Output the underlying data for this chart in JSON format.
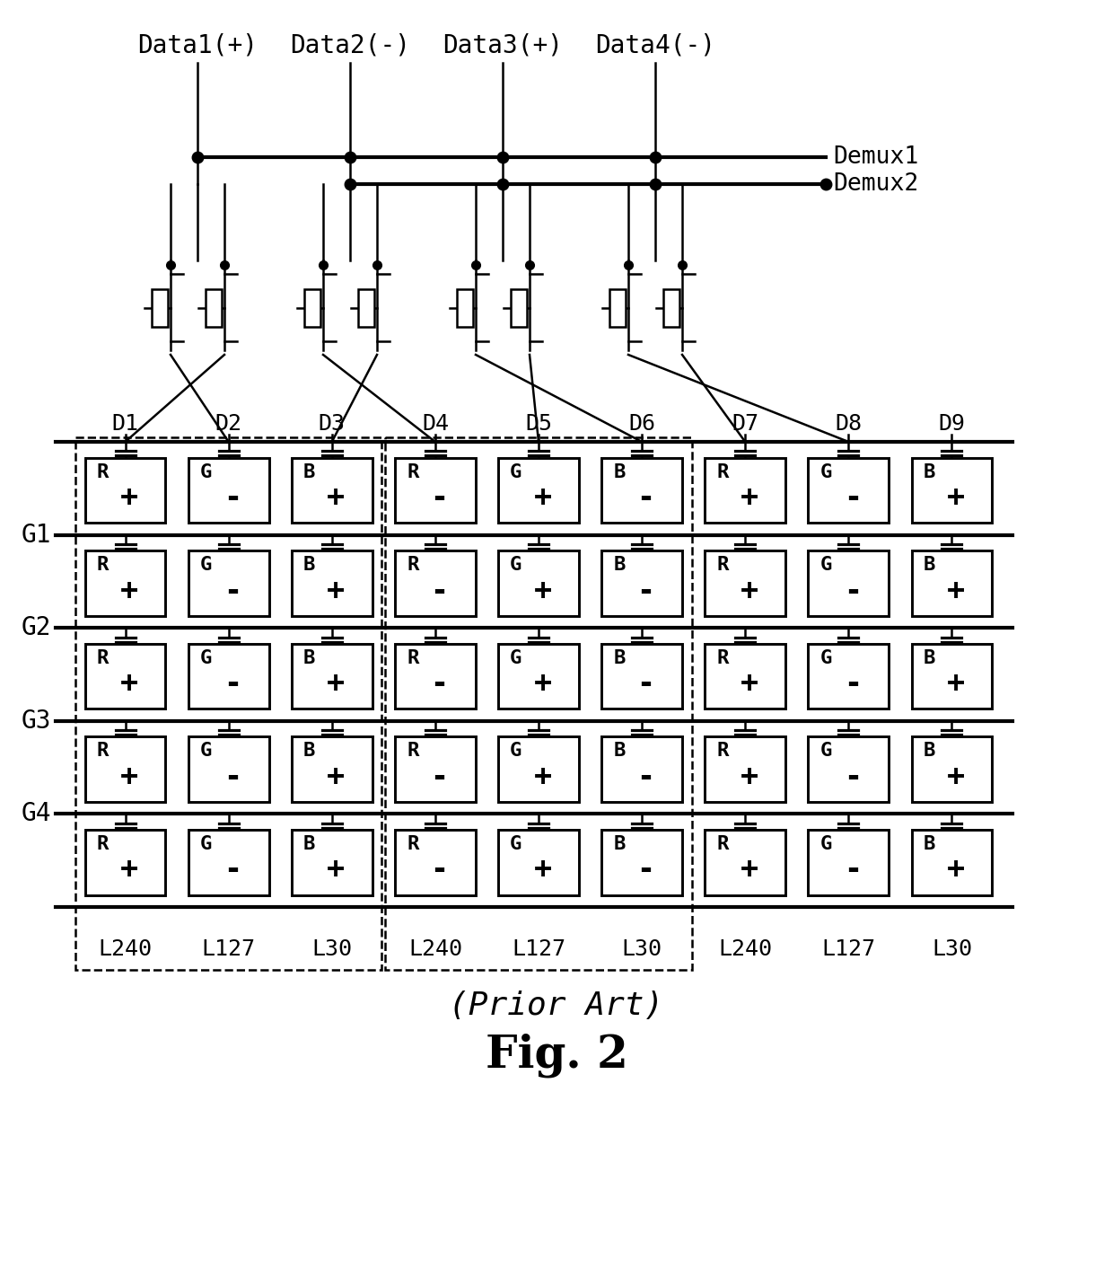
{
  "fig_width": 12.4,
  "fig_height": 14.12,
  "dpi": 100,
  "bg_color": "#ffffff",
  "line_color": "#000000",
  "data_labels": [
    "Data1(+)",
    "Data2(-)",
    "Data3(+)",
    "Data4(-)"
  ],
  "demux_labels": [
    "Demux1",
    "Demux2"
  ],
  "gate_labels": [
    "G1",
    "G2",
    "G3",
    "G4"
  ],
  "drain_labels": [
    "D1",
    "D2",
    "D3",
    "D4",
    "D5",
    "D6",
    "D7",
    "D8",
    "D9"
  ],
  "lum_labels": [
    "L240",
    "L127",
    "L30",
    "L240",
    "L127",
    "L30",
    "L240",
    "L127",
    "L30"
  ],
  "pixel_letters": [
    "R",
    "G",
    "B",
    "R",
    "G",
    "B",
    "R",
    "G",
    "B"
  ],
  "pixel_signs": [
    "+",
    "-",
    "+",
    "-",
    "+",
    "-",
    "+",
    "-",
    "+"
  ],
  "title": "Fig. 2",
  "prior_art": "(Prior Art)"
}
